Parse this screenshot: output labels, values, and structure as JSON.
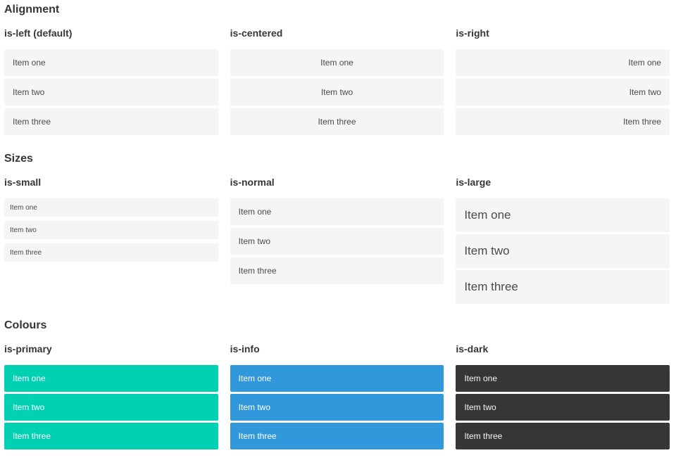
{
  "sections": [
    {
      "title": "Alignment",
      "columns": [
        {
          "heading": "is-left (default)",
          "variant": "left",
          "items": [
            "Item one",
            "Item two",
            "Item three"
          ]
        },
        {
          "heading": "is-centered",
          "variant": "centered",
          "items": [
            "Item one",
            "Item two",
            "Item three"
          ]
        },
        {
          "heading": "is-right",
          "variant": "right",
          "items": [
            "Item one",
            "Item two",
            "Item three"
          ]
        }
      ]
    },
    {
      "title": "Sizes",
      "columns": [
        {
          "heading": "is-small",
          "variant": "small",
          "items": [
            "Item one",
            "Item two",
            "Item three"
          ]
        },
        {
          "heading": "is-normal",
          "variant": "normal",
          "items": [
            "Item one",
            "Item two",
            "Item three"
          ]
        },
        {
          "heading": "is-large",
          "variant": "large",
          "items": [
            "Item one",
            "Item two",
            "Item three"
          ]
        }
      ]
    },
    {
      "title": "Colours",
      "columns": [
        {
          "heading": "is-primary",
          "variant": "primary",
          "items": [
            "Item one",
            "Item two",
            "Item three"
          ]
        },
        {
          "heading": "is-info",
          "variant": "info",
          "items": [
            "Item one",
            "Item two",
            "Item three"
          ]
        },
        {
          "heading": "is-dark",
          "variant": "dark",
          "items": [
            "Item one",
            "Item two",
            "Item three"
          ]
        }
      ]
    }
  ],
  "colors": {
    "primary": "#00d1b2",
    "info": "#3298dc",
    "dark": "#363636",
    "item_background": "#f5f5f5",
    "item_text": "#4a4a4a",
    "heading_text": "#363636"
  }
}
